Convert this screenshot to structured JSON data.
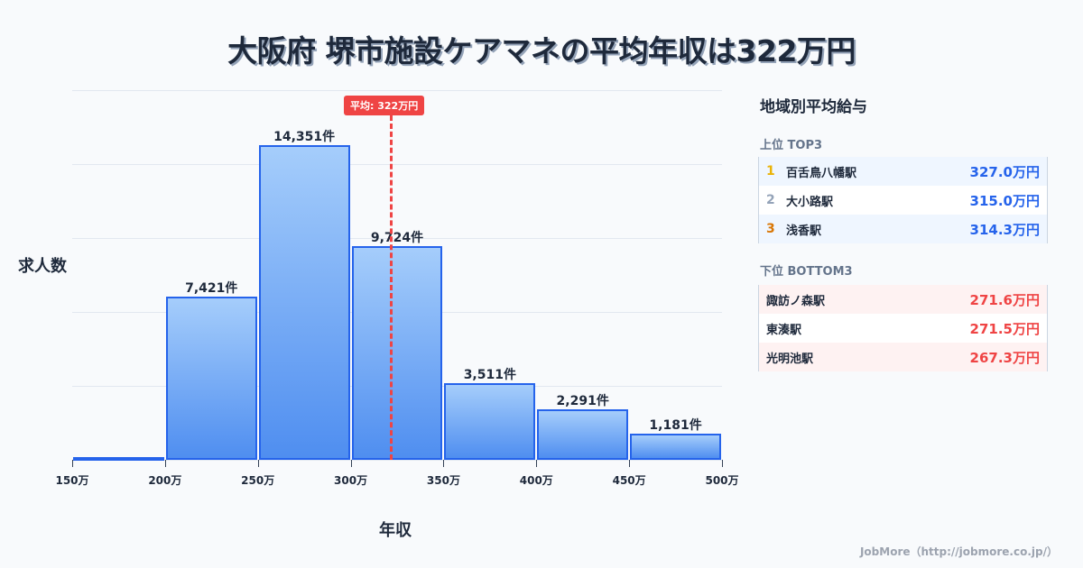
{
  "title": "大阪府 堺市施設ケアマネの平均年収は322万円",
  "chart_data": {
    "type": "bar",
    "title": "大阪府 堺市施設ケアマネの平均年収は322万円",
    "xlabel": "年収",
    "ylabel": "求人数",
    "categories": [
      "150-200万",
      "200-250万",
      "250-300万",
      "300-350万",
      "350-400万",
      "400-450万",
      "450-500万"
    ],
    "values": [
      120,
      7421,
      14351,
      9724,
      3511,
      2291,
      1181
    ],
    "value_labels": [
      "",
      "7,421件",
      "14,351件",
      "9,724件",
      "3,511件",
      "2,291件",
      "1,181件"
    ],
    "x_ticks": [
      "150万",
      "200万",
      "250万",
      "300万",
      "350万",
      "400万",
      "450万",
      "500万"
    ],
    "ylim": [
      0,
      16850
    ],
    "grid": true,
    "mean": {
      "value": 322,
      "label": "平均: 322万円"
    }
  },
  "panel": {
    "title": "地域別平均給与",
    "top_title": "上位 TOP3",
    "top": [
      {
        "rank": "1",
        "name": "百舌鳥八幡駅",
        "value": "327.0万円",
        "color": "#eab308"
      },
      {
        "rank": "2",
        "name": "大小路駅",
        "value": "315.0万円",
        "color": "#94a3b8"
      },
      {
        "rank": "3",
        "name": "浅香駅",
        "value": "314.3万円",
        "color": "#d97706"
      }
    ],
    "bottom_title": "下位 BOTTOM3",
    "bottom": [
      {
        "name": "諏訪ノ森駅",
        "value": "271.6万円"
      },
      {
        "name": "東湊駅",
        "value": "271.5万円"
      },
      {
        "name": "光明池駅",
        "value": "267.3万円"
      }
    ]
  },
  "footer": "JobMore（http://jobmore.co.jp/）"
}
